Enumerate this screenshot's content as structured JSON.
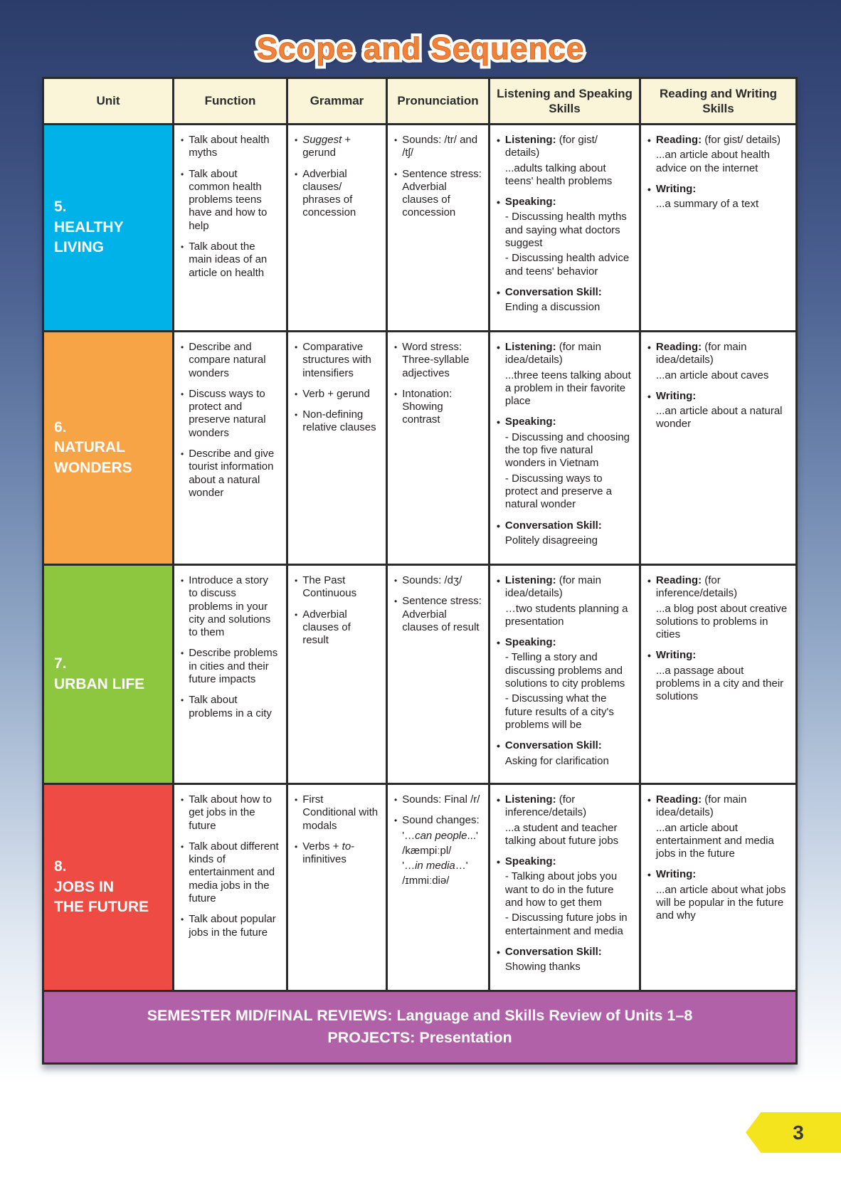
{
  "page": {
    "title": "Scope and Sequence",
    "page_number": "3"
  },
  "colors": {
    "header_bg": "#faf4d8",
    "table_border": "#2b2b2b",
    "band_bg": "#b061a8",
    "page_tab": "#f3e41d",
    "title_orange": "#f0823a"
  },
  "table": {
    "headers": [
      "Unit",
      "Function",
      "Grammar",
      "Pronunciation",
      "Listening and Speaking Skills",
      "Reading and Writing Skills"
    ],
    "units": [
      {
        "number": "5.",
        "name": "HEALTHY\nLIVING",
        "color": "#00b2e8",
        "function": [
          "Talk about health myths",
          "Talk about common health problems teens have and how to help",
          "Talk about the main ideas of an article on health"
        ],
        "grammar": [
          "*Suggest* + gerund",
          "Adverbial clauses/ phrases of concession"
        ],
        "pronunciation": [
          "Sounds: /tr/ and /tʃ/",
          "Sentence stress: Adverbial clauses of concession"
        ],
        "listening_speaking": [
          "**Listening:** (for gist/ details)\n...adults talking about teens' health problems",
          "**Speaking:**\n- Discussing health myths and saying what doctors suggest\n- Discussing health advice and teens' behavior",
          "**Conversation Skill:**\nEnding a discussion"
        ],
        "reading_writing": [
          "**Reading:** (for gist/ details)\n...an article about health advice on the internet",
          "**Writing:**\n...a summary of a text"
        ]
      },
      {
        "number": "6.",
        "name": "NATURAL\nWONDERS",
        "color": "#f7a447",
        "function": [
          "Describe and compare natural wonders",
          "Discuss ways to protect and preserve natural wonders",
          "Describe and give tourist information about a natural wonder"
        ],
        "grammar": [
          "Comparative structures with intensifiers",
          "Verb + gerund",
          "Non-defining relative clauses"
        ],
        "pronunciation": [
          "Word stress: Three-syllable adjectives",
          "Intonation: Showing contrast"
        ],
        "listening_speaking": [
          "**Listening:** (for main idea/details)\n...three teens talking about a problem in their favorite place",
          "**Speaking:**\n- Discussing and choosing the top five natural wonders in Vietnam\n- Discussing ways to protect and preserve a natural wonder",
          "**Conversation Skill:**\nPolitely disagreeing"
        ],
        "reading_writing": [
          "**Reading:** (for main idea/details)\n...an article about caves",
          "**Writing:**\n...an article about a natural wonder"
        ]
      },
      {
        "number": "7.",
        "name": "URBAN LIFE",
        "color": "#8dc63f",
        "function": [
          "Introduce a story to discuss problems in your city and solutions to them",
          "Describe problems in cities and their future impacts",
          "Talk about problems in a city"
        ],
        "grammar": [
          "The Past Continuous",
          "Adverbial clauses of result"
        ],
        "pronunciation": [
          "Sounds: /dʒ/",
          "Sentence stress: Adverbial clauses of result"
        ],
        "listening_speaking": [
          "**Listening:** (for main idea/details)\n…two students planning a presentation",
          "**Speaking:**\n- Telling a story and discussing problems and solutions to city problems\n- Discussing what the future results of a city's problems will be",
          "**Conversation Skill:**\nAsking for clarification"
        ],
        "reading_writing": [
          "**Reading:** (for inference/details)\n...a blog post about creative solutions to problems in cities",
          "**Writing:**\n...a passage about problems in a city and their solutions"
        ]
      },
      {
        "number": "8.",
        "name": "JOBS IN\nTHE FUTURE",
        "color": "#ee4b45",
        "function": [
          "Talk about how to get jobs in the future",
          "Talk about different kinds of entertainment and media jobs in the future",
          "Talk about popular jobs in the future"
        ],
        "grammar": [
          "First Conditional with modals",
          "Verbs + *to*-infinitives"
        ],
        "pronunciation": [
          "Sounds: Final /r/",
          "Sound changes:\n'…*can people*...'\n/kæmpiːpl/\n'…*in media*…'\n/ɪmmiːdiə/"
        ],
        "listening_speaking": [
          "**Listening:** (for inference/details)\n...a student and teacher talking about future jobs",
          "**Speaking:**\n- Talking about jobs you want to do in the future and how to get them\n- Discussing future jobs in entertainment and media",
          "**Conversation Skill:**\nShowing thanks"
        ],
        "reading_writing": [
          "**Reading:** (for main idea/details)\n...an article about entertainment and media jobs in the future",
          "**Writing:**\n...an article about what jobs will be popular in the future and why"
        ]
      }
    ],
    "footer": {
      "line1": "SEMESTER MID/FINAL REVIEWS: Language and Skills Review of Units 1–8",
      "line2": "PROJECTS: Presentation"
    }
  }
}
